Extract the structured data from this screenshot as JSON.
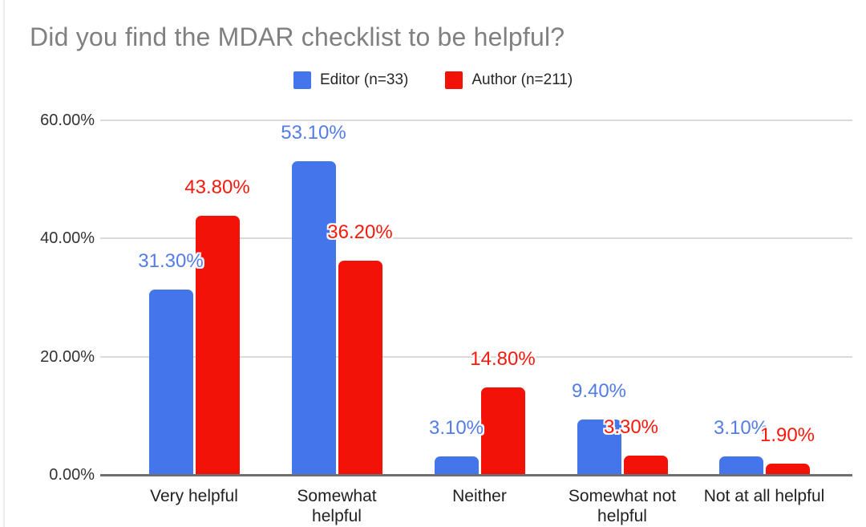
{
  "chart_data": {
    "type": "bar",
    "title": "Did you find the MDAR checklist to be helpful?",
    "categories": [
      "Very helpful",
      "Somewhat\nhelpful",
      "Neither",
      "Somewhat not\nhelpful",
      "Not at all helpful"
    ],
    "series": [
      {
        "name": "Editor (n=33)",
        "color": "#4575EB",
        "label_color": "#537CE9",
        "values": [
          31.3,
          53.1,
          3.1,
          9.4,
          3.1
        ]
      },
      {
        "name": "Author (n=211)",
        "color": "#F31208",
        "label_color": "#F9180C",
        "values": [
          43.8,
          36.2,
          14.8,
          3.3,
          1.9
        ]
      }
    ],
    "value_label_format": "percent_2dp",
    "yticks": [
      0,
      20,
      40,
      60
    ],
    "ytick_labels": [
      "0.00%",
      "20.00%",
      "40.00%",
      "60.00%"
    ],
    "ylim": [
      0,
      60
    ],
    "grid": true,
    "legend_position": "top",
    "title_color": "#808080",
    "gridline_color": "#dadada",
    "axis_line_color": "#6f6f6f"
  }
}
